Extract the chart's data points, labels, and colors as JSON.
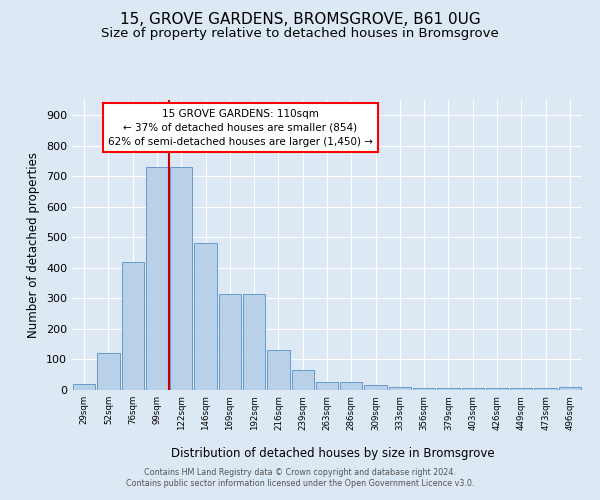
{
  "title": "15, GROVE GARDENS, BROMSGROVE, B61 0UG",
  "subtitle": "Size of property relative to detached houses in Bromsgrove",
  "xlabel": "Distribution of detached houses by size in Bromsgrove",
  "ylabel": "Number of detached properties",
  "categories": [
    "29sqm",
    "52sqm",
    "76sqm",
    "99sqm",
    "122sqm",
    "146sqm",
    "169sqm",
    "192sqm",
    "216sqm",
    "239sqm",
    "263sqm",
    "286sqm",
    "309sqm",
    "333sqm",
    "356sqm",
    "379sqm",
    "403sqm",
    "426sqm",
    "449sqm",
    "473sqm",
    "496sqm"
  ],
  "values": [
    20,
    120,
    420,
    730,
    730,
    480,
    315,
    315,
    130,
    65,
    25,
    25,
    15,
    10,
    5,
    5,
    5,
    5,
    5,
    5,
    10
  ],
  "bar_color": "#b8d0e8",
  "bar_edge_color": "#6699cc",
  "vline_x": 3.5,
  "vline_color": "#cc0000",
  "annotation_text": "15 GROVE GARDENS: 110sqm\n← 37% of detached houses are smaller (854)\n62% of semi-detached houses are larger (1,450) →",
  "ylim": [
    0,
    950
  ],
  "yticks": [
    0,
    100,
    200,
    300,
    400,
    500,
    600,
    700,
    800,
    900
  ],
  "bg_color": "#dde8f5",
  "footer_line1": "Contains HM Land Registry data © Crown copyright and database right 2024.",
  "footer_line2": "Contains public sector information licensed under the Open Government Licence v3.0."
}
